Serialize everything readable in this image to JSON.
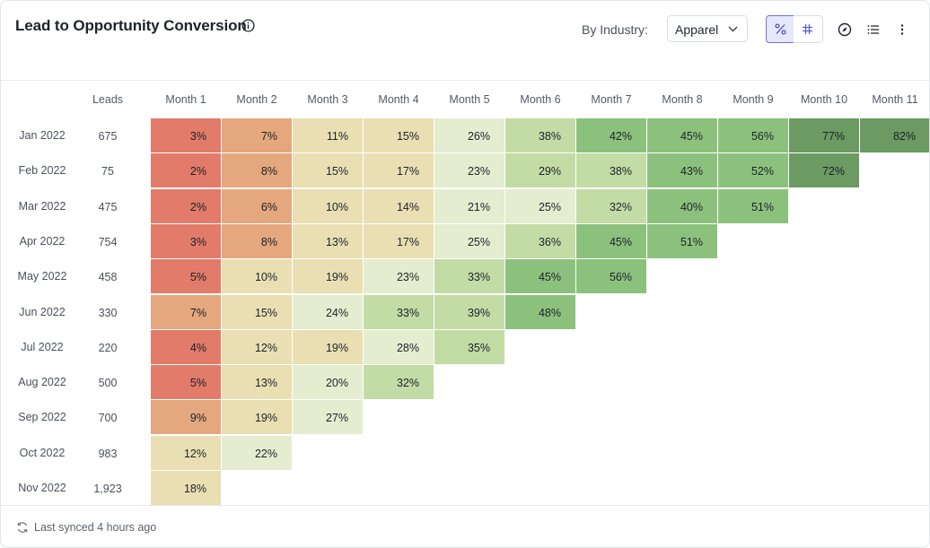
{
  "header": {
    "title": "Lead to Opportunity Conversion",
    "filter_label": "By Industry:",
    "filter_value": "Apparel"
  },
  "table": {
    "leads_header": "Leads",
    "months": [
      "Month 1",
      "Month 2",
      "Month 3",
      "Month 4",
      "Month 5",
      "Month 6",
      "Month 7",
      "Month 8",
      "Month 9",
      "Month 10",
      "Month 11"
    ],
    "rows": [
      {
        "date": "Jan 2022",
        "leads": "675",
        "values": [
          3,
          7,
          11,
          15,
          26,
          38,
          42,
          45,
          56,
          77,
          82
        ]
      },
      {
        "date": "Feb 2022",
        "leads": "75",
        "values": [
          2,
          8,
          15,
          17,
          23,
          29,
          38,
          43,
          52,
          72
        ]
      },
      {
        "date": "Mar 2022",
        "leads": "475",
        "values": [
          2,
          6,
          10,
          14,
          21,
          25,
          32,
          40,
          51
        ]
      },
      {
        "date": "Apr 2022",
        "leads": "754",
        "values": [
          3,
          8,
          13,
          17,
          25,
          36,
          45,
          51
        ]
      },
      {
        "date": "May 2022",
        "leads": "458",
        "values": [
          5,
          10,
          19,
          23,
          33,
          45,
          56
        ]
      },
      {
        "date": "Jun 2022",
        "leads": "330",
        "values": [
          7,
          15,
          24,
          33,
          39,
          48
        ]
      },
      {
        "date": "Jul 2022",
        "leads": "220",
        "values": [
          4,
          12,
          19,
          28,
          35
        ]
      },
      {
        "date": "Aug 2022",
        "leads": "500",
        "values": [
          5,
          13,
          20,
          32
        ]
      },
      {
        "date": "Sep 2022",
        "leads": "700",
        "values": [
          9,
          19,
          27
        ]
      },
      {
        "date": "Oct 2022",
        "leads": "983",
        "values": [
          12,
          22
        ]
      },
      {
        "date": "Nov 2022",
        "leads": "1,923",
        "values": [
          18
        ]
      }
    ]
  },
  "footer": {
    "sync_text": "Last synced 4 hours ago"
  },
  "colors": {
    "red": "#e27b69",
    "orange": "#e4a77e",
    "tan": "#e9dfb3",
    "pale_green": "#e4edcf",
    "light_green": "#c3dba5",
    "green": "#8cc17d",
    "dark_green": "#6b9a62",
    "toggle_active": "#e6e7fb",
    "accent": "#6f70e0"
  },
  "icons": {
    "info": "info-icon",
    "dropdown": "chevron-down-icon",
    "percent": "percent-icon",
    "number": "hash-icon",
    "explore": "compass-icon",
    "list": "list-icon",
    "more": "more-vertical-icon",
    "sync": "refresh-icon"
  }
}
